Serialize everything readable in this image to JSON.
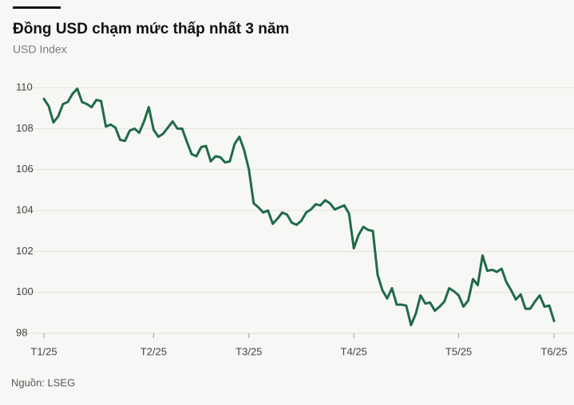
{
  "chart_data": {
    "type": "line",
    "title": "Đồng USD chạm mức thấp nhất 3 năm",
    "subtitle": "USD Index",
    "source": "Nguồn: LSEG",
    "categories": [
      "T1/25",
      null,
      null,
      null,
      null,
      null,
      null,
      null,
      null,
      null,
      null,
      null,
      null,
      null,
      null,
      null,
      null,
      null,
      null,
      null,
      null,
      null,
      null,
      "T2/25",
      null,
      null,
      null,
      null,
      null,
      null,
      null,
      null,
      null,
      null,
      null,
      null,
      null,
      null,
      null,
      null,
      null,
      null,
      null,
      "T3/25",
      null,
      null,
      null,
      null,
      null,
      null,
      null,
      null,
      null,
      null,
      null,
      null,
      null,
      null,
      null,
      null,
      null,
      null,
      null,
      null,
      null,
      "T4/25",
      null,
      null,
      null,
      null,
      null,
      null,
      null,
      null,
      null,
      null,
      null,
      null,
      null,
      null,
      null,
      null,
      null,
      null,
      null,
      null,
      null,
      "T5/25",
      null,
      null,
      null,
      null,
      null,
      null,
      null,
      null,
      null,
      null,
      null,
      null,
      null,
      null,
      null,
      null,
      null,
      null,
      null,
      "T6/25"
    ],
    "series": [
      {
        "name": "USD Index",
        "color": "#1f6b45",
        "values": [
          109.45,
          109.1,
          108.3,
          108.6,
          109.2,
          109.3,
          109.7,
          109.95,
          109.3,
          109.2,
          109.05,
          109.4,
          109.35,
          108.1,
          108.2,
          108.05,
          107.45,
          107.4,
          107.9,
          108,
          107.8,
          108.35,
          109.05,
          107.95,
          107.6,
          107.75,
          108.05,
          108.35,
          108,
          108,
          107.35,
          106.75,
          106.65,
          107.1,
          107.15,
          106.4,
          106.65,
          106.6,
          106.35,
          106.4,
          107.25,
          107.6,
          106.95,
          106,
          104.35,
          104.15,
          103.9,
          104,
          103.35,
          103.6,
          103.9,
          103.8,
          103.4,
          103.3,
          103.5,
          103.9,
          104.05,
          104.3,
          104.25,
          104.5,
          104.35,
          104.05,
          104.15,
          104.25,
          103.85,
          102.15,
          102.8,
          103.2,
          103.05,
          103,
          100.85,
          100.1,
          99.7,
          100.2,
          99.4,
          99.4,
          99.35,
          98.4,
          98.95,
          99.85,
          99.45,
          99.5,
          99.1,
          99.3,
          99.55,
          100.2,
          100.05,
          99.85,
          99.3,
          99.6,
          100.65,
          100.35,
          101.8,
          101.05,
          101.1,
          101,
          101.15,
          100.5,
          100.1,
          99.65,
          99.9,
          99.2,
          99.2,
          99.55,
          99.85,
          99.3,
          99.35,
          98.6
        ]
      }
    ],
    "ylim": [
      98,
      110
    ],
    "yticks": [
      98,
      100,
      102,
      104,
      106,
      108,
      110
    ],
    "grid": true
  }
}
